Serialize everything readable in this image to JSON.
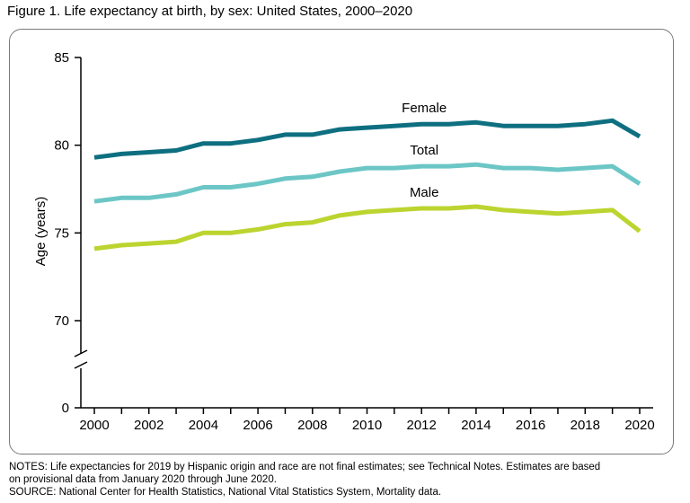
{
  "figure": {
    "title": "Figure 1. Life expectancy at birth, by sex: United States, 2000–2020"
  },
  "chart_data": {
    "type": "line",
    "x": [
      2000,
      2001,
      2002,
      2003,
      2004,
      2005,
      2006,
      2007,
      2008,
      2009,
      2010,
      2011,
      2012,
      2013,
      2014,
      2015,
      2016,
      2017,
      2018,
      2019,
      2020
    ],
    "series": [
      {
        "name": "Female",
        "color": "#0e6f80",
        "values": [
          79.3,
          79.5,
          79.6,
          79.7,
          80.1,
          80.1,
          80.3,
          80.6,
          80.6,
          80.9,
          81.0,
          81.1,
          81.2,
          81.2,
          81.3,
          81.1,
          81.1,
          81.1,
          81.2,
          81.4,
          80.5
        ]
      },
      {
        "name": "Total",
        "color": "#6cc6c6",
        "values": [
          76.8,
          77.0,
          77.0,
          77.2,
          77.6,
          77.6,
          77.8,
          78.1,
          78.2,
          78.5,
          78.7,
          78.7,
          78.8,
          78.8,
          78.9,
          78.7,
          78.7,
          78.6,
          78.7,
          78.8,
          77.8
        ]
      },
      {
        "name": "Male",
        "color": "#bcd42f",
        "values": [
          74.1,
          74.3,
          74.4,
          74.5,
          75.0,
          75.0,
          75.2,
          75.5,
          75.6,
          76.0,
          76.2,
          76.3,
          76.4,
          76.4,
          76.5,
          76.3,
          76.2,
          76.1,
          76.2,
          76.3,
          75.1
        ]
      }
    ],
    "ylabel": "Age (years)",
    "xlabel": "",
    "ylim": [
      70,
      85
    ],
    "y_ticks": [
      85,
      80,
      75,
      70
    ],
    "y_break_tick": 0,
    "x_ticks": [
      2000,
      2002,
      2004,
      2006,
      2008,
      2010,
      2012,
      2014,
      2016,
      2018,
      2020
    ],
    "grid": false
  },
  "notes": {
    "line1": "NOTES: Life expectancies for 2019 by Hispanic origin and race are not final estimates; see Technical Notes. Estimates are based",
    "line2": "on provisional data from January 2020 through June 2020.",
    "source": "SOURCE: National Center for Health Statistics, National Vital Statistics System, Mortality data."
  }
}
